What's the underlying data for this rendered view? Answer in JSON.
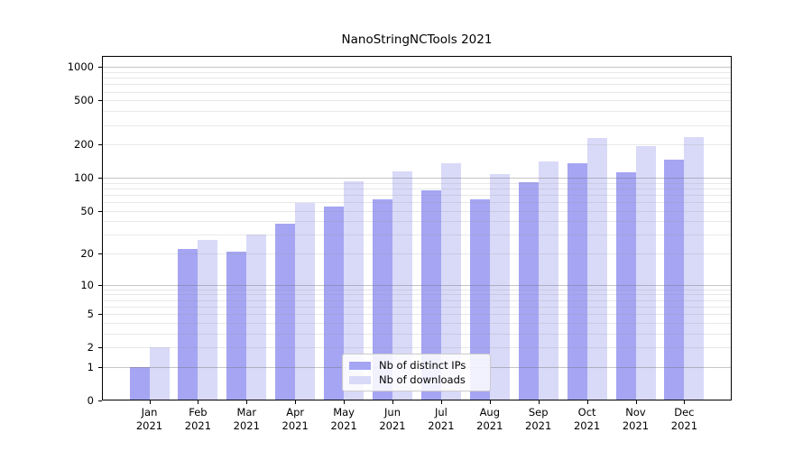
{
  "title": "NanoStringNCTools 2021",
  "chart_data": {
    "type": "bar",
    "title": "NanoStringNCTools 2021",
    "categories": [
      "Jan",
      "Feb",
      "Mar",
      "Apr",
      "May",
      "Jun",
      "Jul",
      "Aug",
      "Sep",
      "Oct",
      "Nov",
      "Dec"
    ],
    "year_label": "2021",
    "series": [
      {
        "name": "Nb of distinct IPs",
        "color": "#a5a5f3",
        "values": [
          1,
          22,
          21,
          38,
          55,
          64,
          77,
          63,
          91,
          135,
          112,
          145
        ]
      },
      {
        "name": "Nb of downloads",
        "color": "#d9d9f8",
        "values": [
          2,
          27,
          30,
          59,
          92,
          114,
          135,
          107,
          140,
          230,
          194,
          235
        ]
      }
    ],
    "yscale": "log10(1+v)",
    "ylim": [
      0,
      1300
    ],
    "yticks": [
      0,
      1,
      2,
      5,
      10,
      20,
      50,
      100,
      200,
      500,
      1000
    ],
    "gridlines": {
      "major": [
        1,
        10,
        100,
        1000
      ],
      "minor": [
        2,
        3,
        4,
        5,
        6,
        7,
        8,
        9,
        20,
        30,
        40,
        50,
        60,
        70,
        80,
        90,
        200,
        300,
        400,
        500,
        600,
        700,
        800,
        900
      ]
    },
    "grid": true,
    "legend_position": "lower center",
    "legend": [
      "Nb of distinct IPs",
      "Nb of downloads"
    ]
  }
}
